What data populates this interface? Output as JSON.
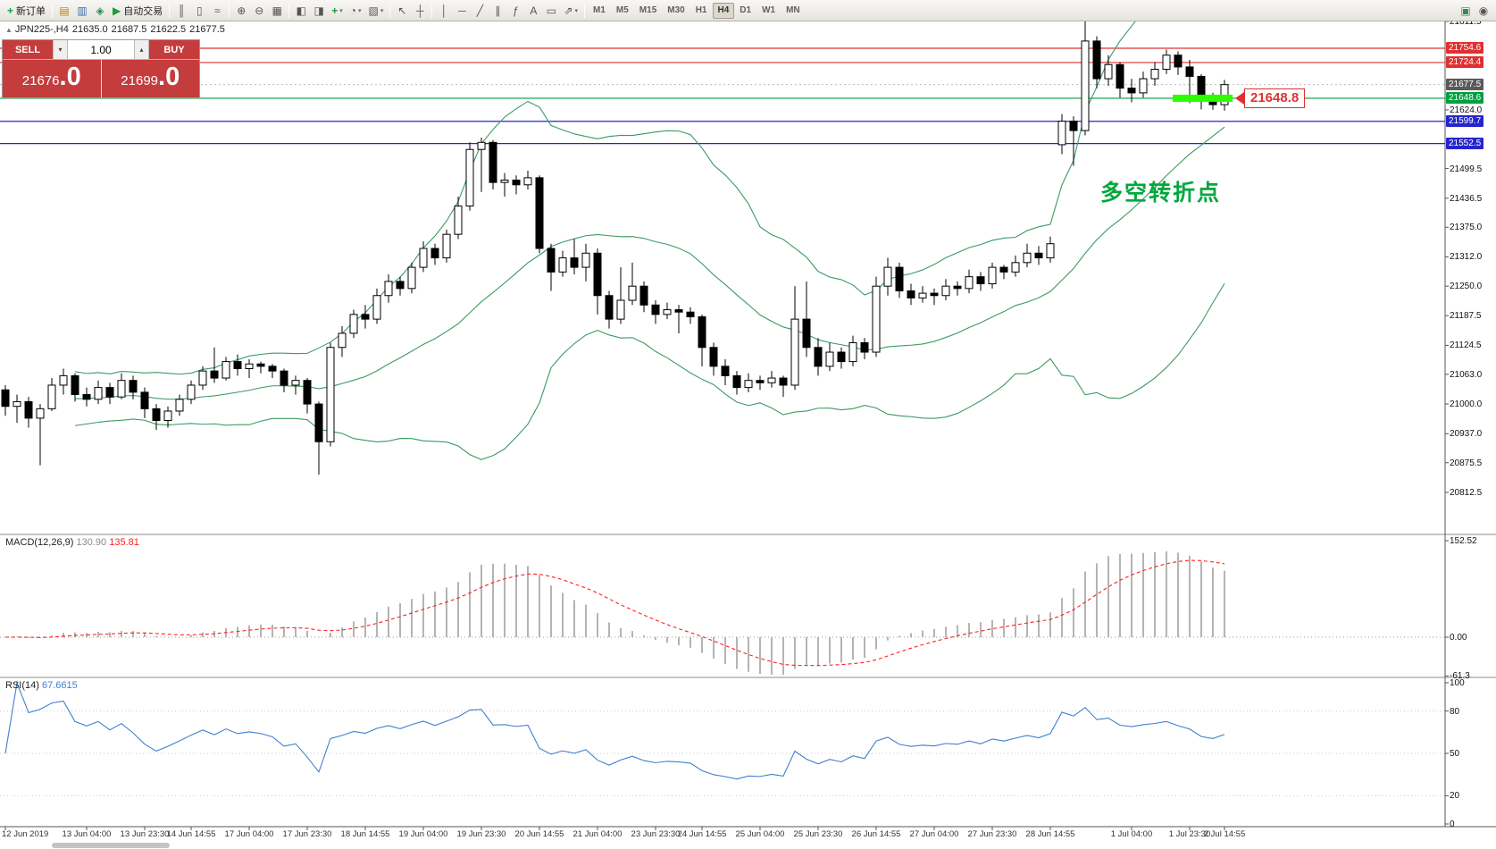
{
  "toolbar": {
    "items": [
      {
        "t": "btn",
        "name": "new-order-button",
        "glyph": "+",
        "color": "#1f9d3a",
        "label": "新订单"
      },
      {
        "t": "sep"
      },
      {
        "t": "btn",
        "name": "market-watch-icon",
        "glyph": "▤",
        "color": "#b8860b"
      },
      {
        "t": "btn",
        "name": "data-window-icon",
        "glyph": "▥",
        "color": "#3a6ea5"
      },
      {
        "t": "btn",
        "name": "navigator-icon",
        "glyph": "◈",
        "color": "#2e8b57"
      },
      {
        "t": "btn",
        "name": "autotrading-button",
        "glyph": "▶",
        "color": "#1f9d3a",
        "label": "自动交易"
      },
      {
        "t": "sep"
      },
      {
        "t": "btn",
        "name": "bar-chart-icon",
        "glyph": "║"
      },
      {
        "t": "btn",
        "name": "candlestick-chart-icon",
        "glyph": "▯"
      },
      {
        "t": "btn",
        "name": "line-chart-icon",
        "glyph": "≈"
      },
      {
        "t": "sep"
      },
      {
        "t": "btn",
        "name": "zoom-in-icon",
        "glyph": "⊕"
      },
      {
        "t": "btn",
        "name": "zoom-out-icon",
        "glyph": "⊖"
      },
      {
        "t": "btn",
        "name": "auto-arrange-icon",
        "glyph": "▦"
      },
      {
        "t": "sep"
      },
      {
        "t": "btn",
        "name": "tile-windows-icon",
        "glyph": "◧"
      },
      {
        "t": "btn",
        "name": "new-chart-icon",
        "glyph": "◨"
      },
      {
        "t": "btn",
        "name": "indicators-menu-button",
        "glyph": "+",
        "color": "#1f9d3a",
        "caret": true
      },
      {
        "t": "btn",
        "name": "periods-menu-button",
        "glyph": "◔",
        "caret": true
      },
      {
        "t": "btn",
        "name": "templates-menu-button",
        "glyph": "▧",
        "caret": true
      },
      {
        "t": "sep"
      },
      {
        "t": "btn",
        "name": "cursor-icon",
        "glyph": "↖"
      },
      {
        "t": "btn",
        "name": "crosshair-icon",
        "glyph": "┼"
      },
      {
        "t": "sep"
      },
      {
        "t": "btn",
        "name": "vertical-line-icon",
        "glyph": "│"
      },
      {
        "t": "btn",
        "name": "horizontal-line-icon",
        "glyph": "─"
      },
      {
        "t": "btn",
        "name": "trendline-icon",
        "glyph": "╱"
      },
      {
        "t": "btn",
        "name": "channel-icon",
        "glyph": "∥"
      },
      {
        "t": "btn",
        "name": "fibonacci-icon",
        "glyph": "ƒ"
      },
      {
        "t": "btn",
        "name": "text-icon",
        "glyph": "A"
      },
      {
        "t": "btn",
        "name": "label-icon",
        "glyph": "▭"
      },
      {
        "t": "btn",
        "name": "arrows-icon",
        "glyph": "⇗",
        "caret": true
      },
      {
        "t": "sep"
      },
      {
        "t": "tf"
      },
      {
        "t": "spacer"
      },
      {
        "t": "btn",
        "name": "chart-profile-icon",
        "glyph": "▣",
        "color": "#2e8b57"
      },
      {
        "t": "btn",
        "name": "help-icon",
        "glyph": "◉"
      }
    ],
    "timeframes": [
      "M1",
      "M5",
      "M15",
      "M30",
      "H1",
      "H4",
      "D1",
      "W1",
      "MN"
    ],
    "active_timeframe": "H4"
  },
  "symbol_info": {
    "expander": "▲",
    "symbol": "JPN225-,H4",
    "open": "21635.0",
    "high": "21687.5",
    "low": "21622.5",
    "close": "21677.5"
  },
  "trade_panel": {
    "sell_label": "SELL",
    "buy_label": "BUY",
    "volume": "1.00",
    "step_down_glyph": "▾",
    "step_up_glyph": "▴",
    "sell_price_main": "21676",
    "sell_price_frac": ".0",
    "buy_price_main": "21699",
    "buy_price_frac": ".0"
  },
  "annotations": {
    "turning_point": "多空转折点",
    "turning_point_color": "#00a83c",
    "price_callout": "21648.8",
    "callout_value": 21648.8,
    "callout_color": "#e03030"
  },
  "indicators": {
    "macd": {
      "label": "MACD(12,26,9)",
      "value_main": "130.90",
      "value_signal": "135.81",
      "histogram_color": "#b4b4b4",
      "signal_color": "#ff2020"
    },
    "rsi": {
      "label": "RSI(14)",
      "value": "67.6615",
      "color": "#3f7fd0"
    }
  },
  "chart_data": {
    "type": "candlestick-ohlc",
    "symbol": "JPN225-",
    "timeframe": "H4",
    "bollinger": {
      "period": 20,
      "deviation": 2,
      "color": "#3c9a62"
    },
    "price_axis": {
      "ticks": [
        "21811.5",
        "21624.0",
        "21499.5",
        "21436.5",
        "21375.0",
        "21312.0",
        "21250.0",
        "21187.5",
        "21124.5",
        "21063.0",
        "21000.0",
        "20937.0",
        "20875.5",
        "20812.5"
      ],
      "lines": [
        {
          "value": 21754.6,
          "label": "21754.6",
          "color": "#e03030",
          "axis_bg": "#e03030"
        },
        {
          "value": 21724.4,
          "label": "21724.4",
          "color": "#e03030",
          "axis_bg": "#e03030"
        },
        {
          "value": 21648.6,
          "label": "21648.6",
          "color": "#00a040",
          "axis_bg": "#00a040"
        },
        {
          "value": 21599.7,
          "label": "21599.7",
          "color": "#2525cc",
          "axis_bg": "#2525cc"
        },
        {
          "value": 21552.5,
          "label": "21552.5",
          "color": "#2525cc",
          "axis_bg": "#2525cc"
        }
      ],
      "bid": {
        "value": 21677.5,
        "label": "21677.5",
        "axis_bg": "#5a5a5a"
      }
    },
    "highlight": {
      "value": 21648.6,
      "color": "#2bff00",
      "from_candle": 101,
      "to_candle": 105
    },
    "macd_axis": [
      {
        "label": "152.52",
        "value": 152.52
      },
      {
        "label": "0.00",
        "value": 0
      },
      {
        "label": "-61.3",
        "value": -61.3
      }
    ],
    "rsi_axis": [
      {
        "label": "100",
        "value": 100
      },
      {
        "label": "80",
        "value": 80
      },
      {
        "label": "50",
        "value": 50
      },
      {
        "label": "20",
        "value": 20
      },
      {
        "label": "0",
        "value": 0
      }
    ],
    "rsi_levels": [
      80,
      50,
      20
    ],
    "time_axis": [
      {
        "text": "12 Jun 2019",
        "i": 0
      },
      {
        "text": "13 Jun 04:00",
        "i": 7
      },
      {
        "text": "13 Jun 23:30",
        "i": 12
      },
      {
        "text": "14 Jun 14:55",
        "i": 16
      },
      {
        "text": "17 Jun 04:00",
        "i": 21
      },
      {
        "text": "17 Jun 23:30",
        "i": 26
      },
      {
        "text": "18 Jun 14:55",
        "i": 31
      },
      {
        "text": "19 Jun 04:00",
        "i": 36
      },
      {
        "text": "19 Jun 23:30",
        "i": 41
      },
      {
        "text": "20 Jun 14:55",
        "i": 46
      },
      {
        "text": "21 Jun 04:00",
        "i": 51
      },
      {
        "text": "23 Jun 23:30",
        "i": 56
      },
      {
        "text": "24 Jun 14:55",
        "i": 60
      },
      {
        "text": "25 Jun 04:00",
        "i": 65
      },
      {
        "text": "25 Jun 23:30",
        "i": 70
      },
      {
        "text": "26 Jun 14:55",
        "i": 75
      },
      {
        "text": "27 Jun 04:00",
        "i": 80
      },
      {
        "text": "27 Jun 23:30",
        "i": 85
      },
      {
        "text": "28 Jun 14:55",
        "i": 90
      },
      {
        "text": "1 Jul 04:00",
        "i": 97
      },
      {
        "text": "1 Jul 23:30",
        "i": 102
      },
      {
        "text": "2 Jul 14:55",
        "i": 105
      }
    ],
    "candles": [
      [
        21030,
        21040,
        20975,
        20995
      ],
      [
        20995,
        21020,
        20960,
        21005
      ],
      [
        21005,
        21015,
        20950,
        20970
      ],
      [
        20970,
        21000,
        20870,
        20990
      ],
      [
        20990,
        21055,
        20985,
        21040
      ],
      [
        21040,
        21075,
        21020,
        21060
      ],
      [
        21060,
        21065,
        21005,
        21020
      ],
      [
        21020,
        21035,
        20995,
        21010
      ],
      [
        21010,
        21050,
        21000,
        21035
      ],
      [
        21035,
        21045,
        21000,
        21015
      ],
      [
        21015,
        21065,
        21010,
        21050
      ],
      [
        21050,
        21060,
        21010,
        21025
      ],
      [
        21025,
        21035,
        20970,
        20990
      ],
      [
        20990,
        21000,
        20945,
        20965
      ],
      [
        20965,
        20995,
        20950,
        20985
      ],
      [
        20985,
        21020,
        20975,
        21010
      ],
      [
        21010,
        21050,
        21000,
        21040
      ],
      [
        21040,
        21080,
        21030,
        21070
      ],
      [
        21070,
        21120,
        21045,
        21055
      ],
      [
        21055,
        21100,
        21050,
        21090
      ],
      [
        21090,
        21105,
        21060,
        21075
      ],
      [
        21075,
        21095,
        21055,
        21085
      ],
      [
        21085,
        21090,
        21065,
        21080
      ],
      [
        21080,
        21085,
        21055,
        21070
      ],
      [
        21070,
        21075,
        21025,
        21040
      ],
      [
        21040,
        21060,
        21020,
        21050
      ],
      [
        21050,
        21055,
        20980,
        21000
      ],
      [
        21000,
        21005,
        20850,
        20920
      ],
      [
        20920,
        21130,
        20910,
        21120
      ],
      [
        21120,
        21165,
        21100,
        21150
      ],
      [
        21150,
        21200,
        21140,
        21190
      ],
      [
        21190,
        21210,
        21160,
        21180
      ],
      [
        21180,
        21245,
        21170,
        21230
      ],
      [
        21230,
        21275,
        21215,
        21260
      ],
      [
        21260,
        21270,
        21230,
        21245
      ],
      [
        21245,
        21300,
        21235,
        21290
      ],
      [
        21290,
        21345,
        21280,
        21330
      ],
      [
        21330,
        21340,
        21295,
        21310
      ],
      [
        21310,
        21370,
        21300,
        21360
      ],
      [
        21360,
        21440,
        21350,
        21420
      ],
      [
        21420,
        21555,
        21410,
        21540
      ],
      [
        21540,
        21565,
        21450,
        21555
      ],
      [
        21555,
        21560,
        21455,
        21470
      ],
      [
        21470,
        21490,
        21440,
        21475
      ],
      [
        21475,
        21485,
        21445,
        21465
      ],
      [
        21465,
        21495,
        21455,
        21480
      ],
      [
        21480,
        21485,
        21320,
        21330
      ],
      [
        21330,
        21340,
        21240,
        21280
      ],
      [
        21280,
        21325,
        21270,
        21310
      ],
      [
        21310,
        21350,
        21275,
        21290
      ],
      [
        21290,
        21340,
        21260,
        21320
      ],
      [
        21320,
        21330,
        21190,
        21230
      ],
      [
        21230,
        21240,
        21160,
        21180
      ],
      [
        21180,
        21290,
        21170,
        21220
      ],
      [
        21220,
        21300,
        21210,
        21250
      ],
      [
        21250,
        21260,
        21195,
        21210
      ],
      [
        21210,
        21220,
        21170,
        21190
      ],
      [
        21190,
        21215,
        21180,
        21200
      ],
      [
        21200,
        21210,
        21150,
        21195
      ],
      [
        21195,
        21205,
        21170,
        21185
      ],
      [
        21185,
        21190,
        21080,
        21120
      ],
      [
        21120,
        21130,
        21060,
        21080
      ],
      [
        21080,
        21095,
        21040,
        21060
      ],
      [
        21060,
        21070,
        21020,
        21035
      ],
      [
        21035,
        21065,
        21025,
        21050
      ],
      [
        21050,
        21060,
        21030,
        21045
      ],
      [
        21045,
        21070,
        21035,
        21055
      ],
      [
        21055,
        21060,
        21015,
        21040
      ],
      [
        21040,
        21250,
        21030,
        21180
      ],
      [
        21180,
        21260,
        21100,
        21120
      ],
      [
        21120,
        21140,
        21060,
        21080
      ],
      [
        21080,
        21130,
        21070,
        21110
      ],
      [
        21110,
        21120,
        21075,
        21090
      ],
      [
        21090,
        21145,
        21080,
        21130
      ],
      [
        21130,
        21140,
        21095,
        21110
      ],
      [
        21110,
        21270,
        21100,
        21250
      ],
      [
        21250,
        21310,
        21230,
        21290
      ],
      [
        21290,
        21300,
        21225,
        21240
      ],
      [
        21240,
        21255,
        21210,
        21225
      ],
      [
        21225,
        21250,
        21215,
        21235
      ],
      [
        21235,
        21245,
        21210,
        21230
      ],
      [
        21230,
        21265,
        21220,
        21250
      ],
      [
        21250,
        21260,
        21230,
        21245
      ],
      [
        21245,
        21285,
        21235,
        21270
      ],
      [
        21270,
        21280,
        21240,
        21255
      ],
      [
        21255,
        21300,
        21245,
        21290
      ],
      [
        21290,
        21295,
        21265,
        21280
      ],
      [
        21280,
        21315,
        21270,
        21300
      ],
      [
        21300,
        21340,
        21290,
        21320
      ],
      [
        21320,
        21335,
        21295,
        21310
      ],
      [
        21310,
        21355,
        21300,
        21340
      ],
      [
        21550,
        21615,
        21530,
        21600
      ],
      [
        21600,
        21610,
        21505,
        21580
      ],
      [
        21580,
        21811.5,
        21570,
        21770
      ],
      [
        21770,
        21780,
        21670,
        21690
      ],
      [
        21690,
        21740,
        21675,
        21720
      ],
      [
        21720,
        21725,
        21650,
        21670
      ],
      [
        21670,
        21690,
        21640,
        21660
      ],
      [
        21660,
        21705,
        21650,
        21690
      ],
      [
        21690,
        21725,
        21675,
        21710
      ],
      [
        21710,
        21752,
        21700,
        21740
      ],
      [
        21740,
        21748,
        21698,
        21715
      ],
      [
        21715,
        21730,
        21638,
        21695
      ],
      [
        21695,
        21700,
        21625,
        21648
      ],
      [
        21648,
        21660,
        21624,
        21635
      ],
      [
        21635,
        21687.5,
        21622.5,
        21677.5
      ]
    ]
  }
}
